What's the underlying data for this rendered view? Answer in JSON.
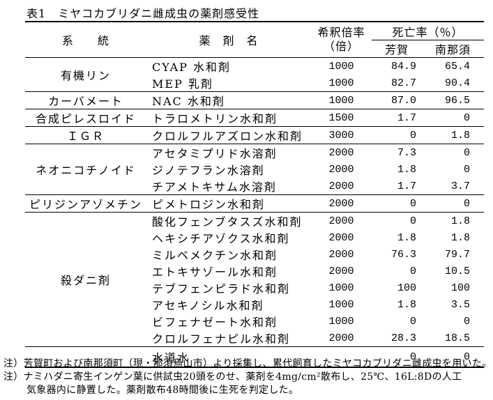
{
  "title": "表1　ミヤコカブリダニ雌成虫の薬剤感受性",
  "table": {
    "headers": {
      "group": "系　　統",
      "pesticide": "薬　剤　名",
      "dilution_line1": "希釈倍率",
      "dilution_line2": "（倍）",
      "mortality": "死亡率（％）",
      "site1": "芳賀",
      "site2": "南那須"
    },
    "rows": [
      {
        "group": "有機リン",
        "pesticide": "CYAP 水和剤",
        "dilution": "1000",
        "haga": "84.9",
        "minaminasu": "65.4"
      },
      {
        "pesticide": "MEP 乳剤",
        "dilution": "1000",
        "haga": "82.7",
        "minaminasu": "90.4"
      },
      {
        "group": "カーバメート",
        "pesticide": "NAC 水和剤",
        "dilution": "1000",
        "haga": "87.0",
        "minaminasu": "96.5"
      },
      {
        "group": "合成ピレスロイド",
        "pesticide": "トラロメトリン水和剤",
        "dilution": "1500",
        "haga": "1.7",
        "minaminasu": "0"
      },
      {
        "group": "ＩＧＲ",
        "pesticide": "クロルフルアズロン水和剤",
        "dilution": "3000",
        "haga": "0",
        "minaminasu": "1.8"
      },
      {
        "group": "ネオニコチノイド",
        "pesticide": "アセタミプリド水溶剤",
        "dilution": "2000",
        "haga": "7.3",
        "minaminasu": "0"
      },
      {
        "pesticide": "ジノテフラン水溶剤",
        "dilution": "2000",
        "haga": "1.8",
        "minaminasu": "0"
      },
      {
        "pesticide": "チアメトキサム水溶剤",
        "dilution": "2000",
        "haga": "1.7",
        "minaminasu": "3.7"
      },
      {
        "group": "ピリジンアゾメチン",
        "pesticide": "ピメトロジン水和剤",
        "dilution": "2000",
        "haga": "0",
        "minaminasu": "0"
      },
      {
        "group": "殺ダニ剤",
        "pesticide": "酸化フェンブタスズ水和剤",
        "dilution": "2000",
        "haga": "0",
        "minaminasu": "1.8"
      },
      {
        "pesticide": "ヘキシチアゾクス水和剤",
        "dilution": "2000",
        "haga": "1.8",
        "minaminasu": "1.8"
      },
      {
        "pesticide": "ミルベメクチン水和剤",
        "dilution": "2000",
        "haga": "76.3",
        "minaminasu": "79.7"
      },
      {
        "pesticide": "エトキサゾール水和剤",
        "dilution": "2000",
        "haga": "0",
        "minaminasu": "10.5"
      },
      {
        "pesticide": "テブフェンピラド水和剤",
        "dilution": "1000",
        "haga": "100",
        "minaminasu": "100"
      },
      {
        "pesticide": "アセキノシル水和剤",
        "dilution": "1000",
        "haga": "1.8",
        "minaminasu": "3.5"
      },
      {
        "pesticide": "ビフェナゼート水和剤",
        "dilution": "1000",
        "haga": "0",
        "minaminasu": "0"
      },
      {
        "pesticide": "クロルフェナピル水和剤",
        "dilution": "2000",
        "haga": "28.3",
        "minaminasu": "18.5"
      },
      {
        "group": "",
        "pesticide": "水道水",
        "dilution": "",
        "haga": "0",
        "minaminasu": "0"
      }
    ]
  },
  "notes": {
    "lines": [
      "注）芳賀町および南那須町（現・那須烏山市）より採集し、累代飼育したミヤコカブリダニ雌成虫を用いた。",
      "注）ナミハダニ寄生インゲン葉に供試虫20頭をのせ、薬剤を4mg/cm²散布し、25℃、16L:8Dの人工",
      "気象器内に静置した。薬剤散布48時間後に生死を判定した。"
    ]
  },
  "colors": {
    "ink": "#000000",
    "background": "#ffffff"
  }
}
